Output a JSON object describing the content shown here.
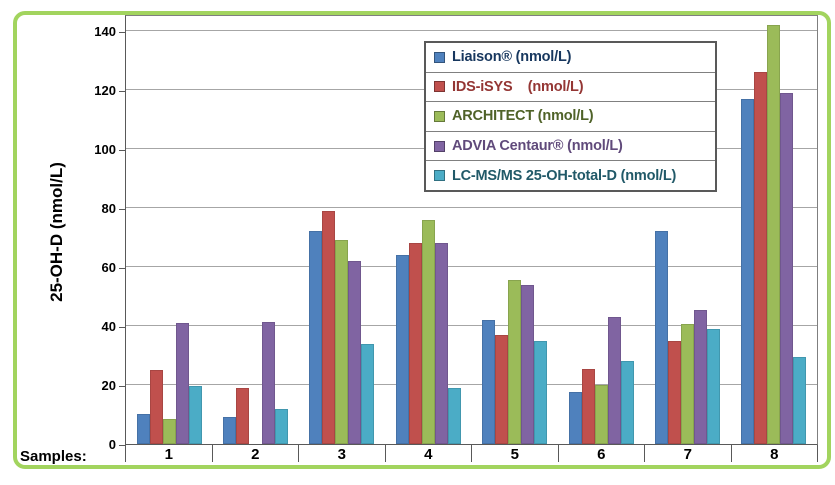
{
  "frame_color": "#A2D45E",
  "x_axis": {
    "label": "Samples:"
  },
  "y_axis": {
    "title": "25-OH-D (nmol/L)"
  },
  "legend": {
    "entries": [
      {
        "label": "Liaison® (nmol/L)",
        "swatch_color": "#4F81BD",
        "text_color": "#17375E"
      },
      {
        "label": "IDS-iSYS    (nmol/L)",
        "swatch_color": "#C0504D",
        "text_color": "#943634"
      },
      {
        "label": "ARCHITECT (nmol/L)",
        "swatch_color": "#9BBB59",
        "text_color": "#4F6228"
      },
      {
        "label": "ADVIA Centaur® (nmol/L)",
        "swatch_color": "#8064A2",
        "text_color": "#604A7B"
      },
      {
        "label": "LC-MS/MS 25-OH-total-D (nmol/L)",
        "swatch_color": "#4BACC6",
        "text_color": "#215968"
      }
    ]
  },
  "chart_data": {
    "type": "bar",
    "title": "",
    "xlabel": "Samples:",
    "ylabel": "25-OH-D (nmol/L)",
    "categories": [
      "1",
      "2",
      "3",
      "4",
      "5",
      "6",
      "7",
      "8"
    ],
    "series": [
      {
        "name": "Liaison® (nmol/L)",
        "color": "#4F81BD",
        "values": [
          10,
          9,
          72,
          64,
          42,
          17.5,
          72,
          117
        ]
      },
      {
        "name": "IDS-iSYS    (nmol/L)",
        "color": "#C0504D",
        "values": [
          25,
          19,
          79,
          68,
          37,
          25.5,
          35,
          126
        ]
      },
      {
        "name": "ARCHITECT (nmol/L)",
        "color": "#9BBB59",
        "values": [
          8.5,
          0,
          69,
          76,
          55.5,
          20,
          40.5,
          142
        ]
      },
      {
        "name": "ADVIA Centaur® (nmol/L)",
        "color": "#8064A2",
        "values": [
          41,
          41.5,
          62,
          68,
          54,
          43,
          45.5,
          119
        ]
      },
      {
        "name": "LC-MS/MS 25-OH-total-D (nmol/L)",
        "color": "#4BACC6",
        "values": [
          19.5,
          12,
          34,
          19,
          35,
          28,
          39,
          29.5
        ]
      }
    ],
    "ylim": [
      0,
      145
    ],
    "ytick_step": 20,
    "yticks": [
      0,
      20,
      40,
      60,
      80,
      100,
      120,
      140
    ],
    "grid": true,
    "legend_position": "top-right-inside"
  }
}
